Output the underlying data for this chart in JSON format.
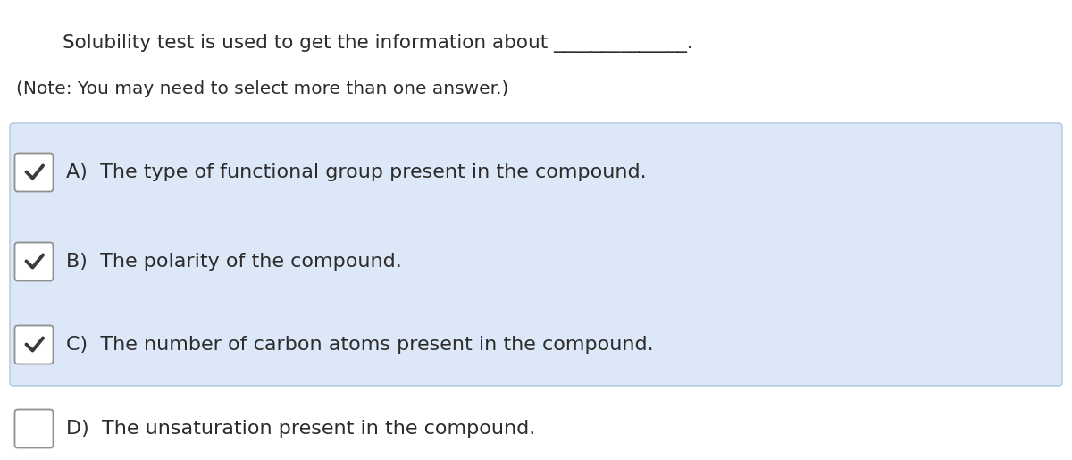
{
  "title_line": "Solubility test is used to get the information about ______________.",
  "note_line": "(Note: You may need to select more than one answer.)",
  "options": [
    {
      "label": "A)",
      "text": "The type of functional group present in the compound.",
      "checked": true
    },
    {
      "label": "B)",
      "text": "The polarity of the compound.",
      "checked": true
    },
    {
      "label": "C)",
      "text": "The number of carbon atoms present in the compound.",
      "checked": true
    },
    {
      "label": "D)",
      "text": "The unsaturation present in the compound.",
      "checked": false
    }
  ],
  "bg_color": "#ffffff",
  "box_bg_color": "#dce8f7",
  "box_border_color": "#b0c8e0",
  "text_color": "#2c2c2c",
  "check_color": "#3a3a3a",
  "title_fontsize": 15.5,
  "note_fontsize": 14.5,
  "option_fontsize": 16,
  "fig_width": 12.0,
  "fig_height": 5.15,
  "dpi": 100
}
